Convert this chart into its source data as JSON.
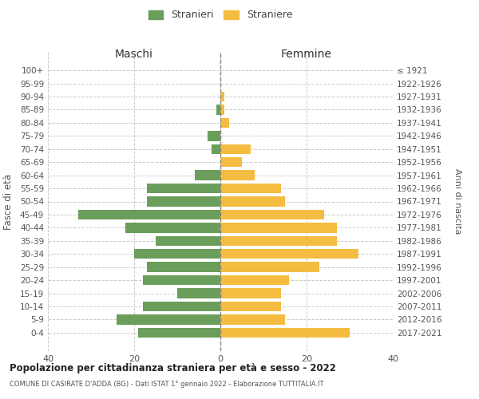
{
  "age_groups": [
    "100+",
    "95-99",
    "90-94",
    "85-89",
    "80-84",
    "75-79",
    "70-74",
    "65-69",
    "60-64",
    "55-59",
    "50-54",
    "45-49",
    "40-44",
    "35-39",
    "30-34",
    "25-29",
    "20-24",
    "15-19",
    "10-14",
    "5-9",
    "0-4"
  ],
  "birth_years": [
    "≤ 1921",
    "1922-1926",
    "1927-1931",
    "1932-1936",
    "1937-1941",
    "1942-1946",
    "1947-1951",
    "1952-1956",
    "1957-1961",
    "1962-1966",
    "1967-1971",
    "1972-1976",
    "1977-1981",
    "1982-1986",
    "1987-1991",
    "1992-1996",
    "1997-2001",
    "2002-2006",
    "2007-2011",
    "2012-2016",
    "2017-2021"
  ],
  "maschi": [
    0,
    0,
    0,
    1,
    0,
    3,
    2,
    0,
    6,
    17,
    17,
    33,
    22,
    15,
    20,
    17,
    18,
    10,
    18,
    24,
    19
  ],
  "femmine": [
    0,
    0,
    1,
    1,
    2,
    0,
    7,
    5,
    8,
    14,
    15,
    24,
    27,
    27,
    32,
    23,
    16,
    14,
    14,
    15,
    30
  ],
  "maschi_color": "#6a9e5a",
  "femmine_color": "#f5bc42",
  "title": "Popolazione per cittadinanza straniera per età e sesso - 2022",
  "subtitle": "COMUNE DI CASIRATE D'ADDA (BG) - Dati ISTAT 1° gennaio 2022 - Elaborazione TUTTITALIA.IT",
  "xlabel_left": "Maschi",
  "xlabel_right": "Femmine",
  "ylabel_left": "Fasce di età",
  "ylabel_right": "Anni di nascita",
  "xlim": 40,
  "legend_maschi": "Stranieri",
  "legend_femmine": "Straniere",
  "bg_color": "#ffffff",
  "grid_color": "#cccccc",
  "bar_height": 0.75
}
